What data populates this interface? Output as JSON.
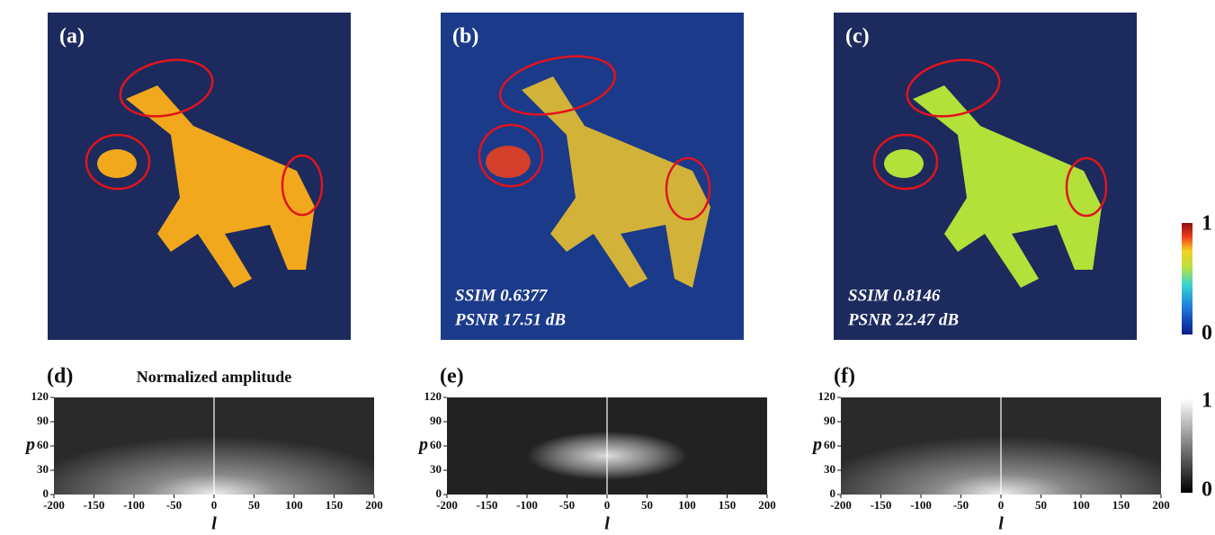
{
  "panels": [
    {
      "label": "(a)"
    },
    {
      "label": "(b)",
      "metrics": [
        "SSIM  0.6377",
        "PSNR  17.51 dB"
      ]
    },
    {
      "label": "(c)",
      "metrics": [
        "SSIM  0.8146",
        "PSNR  22.47 dB"
      ]
    }
  ],
  "colorbar": {
    "ticks": [
      0,
      1
    ]
  },
  "spectra_title": "Normalized amplitude",
  "spectra": [
    {
      "label": "(d)",
      "xlabel": "l",
      "ylabel": "p",
      "xlim": [
        -200,
        200
      ],
      "xticks": [
        -200,
        -150,
        -100,
        -50,
        0,
        50,
        100,
        150,
        200
      ],
      "ylim": [
        0,
        120
      ],
      "yticks": [
        0,
        30,
        60,
        90,
        120
      ]
    },
    {
      "label": "(e)",
      "xlabel": "l",
      "ylabel": "p",
      "xlim": [
        -200,
        200
      ],
      "xticks": [
        -200,
        -150,
        -100,
        -50,
        0,
        50,
        100,
        150,
        200
      ],
      "ylim": [
        0,
        120
      ],
      "yticks": [
        0,
        30,
        60,
        90,
        120
      ]
    },
    {
      "label": "(f)",
      "xlabel": "l",
      "ylabel": "p",
      "xlim": [
        -200,
        200
      ],
      "xticks": [
        -200,
        -150,
        -100,
        -50,
        0,
        50,
        100,
        150,
        200
      ],
      "ylim": [
        0,
        120
      ],
      "yticks": [
        0,
        30,
        60,
        90,
        120
      ]
    }
  ],
  "amplitude_colorbar": {
    "ticks": [
      0,
      1
    ]
  }
}
